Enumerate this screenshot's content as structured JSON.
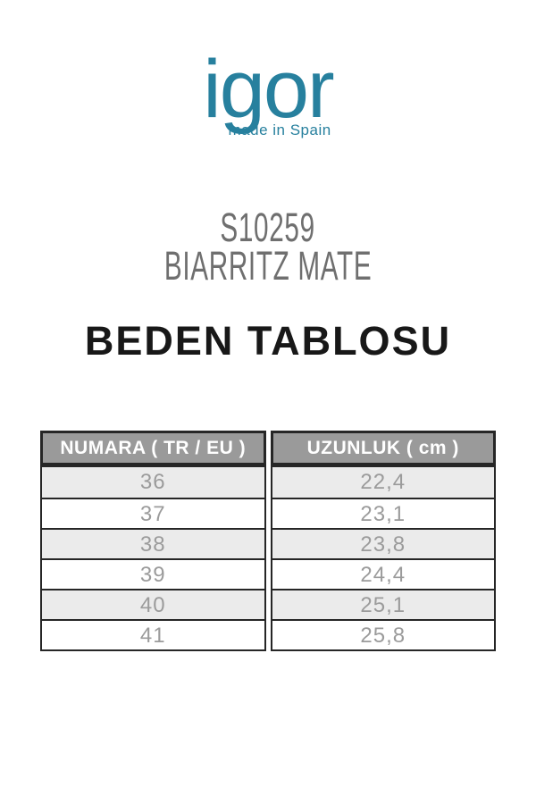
{
  "colors": {
    "brand_teal": "#27809e",
    "product_gray": "#6f6f6f",
    "title_black": "#181818",
    "table_border": "#262626",
    "header_bg": "#9a9a9a",
    "header_text": "#ffffff",
    "stripe_bg": "#ebebeb",
    "row_white": "#ffffff",
    "cell_text": "#9b9b9b"
  },
  "logo": {
    "text": "igor",
    "tagline": "made in Spain"
  },
  "product": {
    "code": "S10259",
    "name": "BIARRITZ MATE"
  },
  "section_title": "BEDEN TABLOSU",
  "table": {
    "columns": [
      {
        "header": "NUMARA ( TR / EU )",
        "values": [
          "36",
          "37",
          "38",
          "39",
          "40",
          "41"
        ]
      },
      {
        "header": "UZUNLUK ( cm )",
        "values": [
          "22,4",
          "23,1",
          "23,8",
          "24,4",
          "25,1",
          "25,8"
        ]
      }
    ]
  }
}
